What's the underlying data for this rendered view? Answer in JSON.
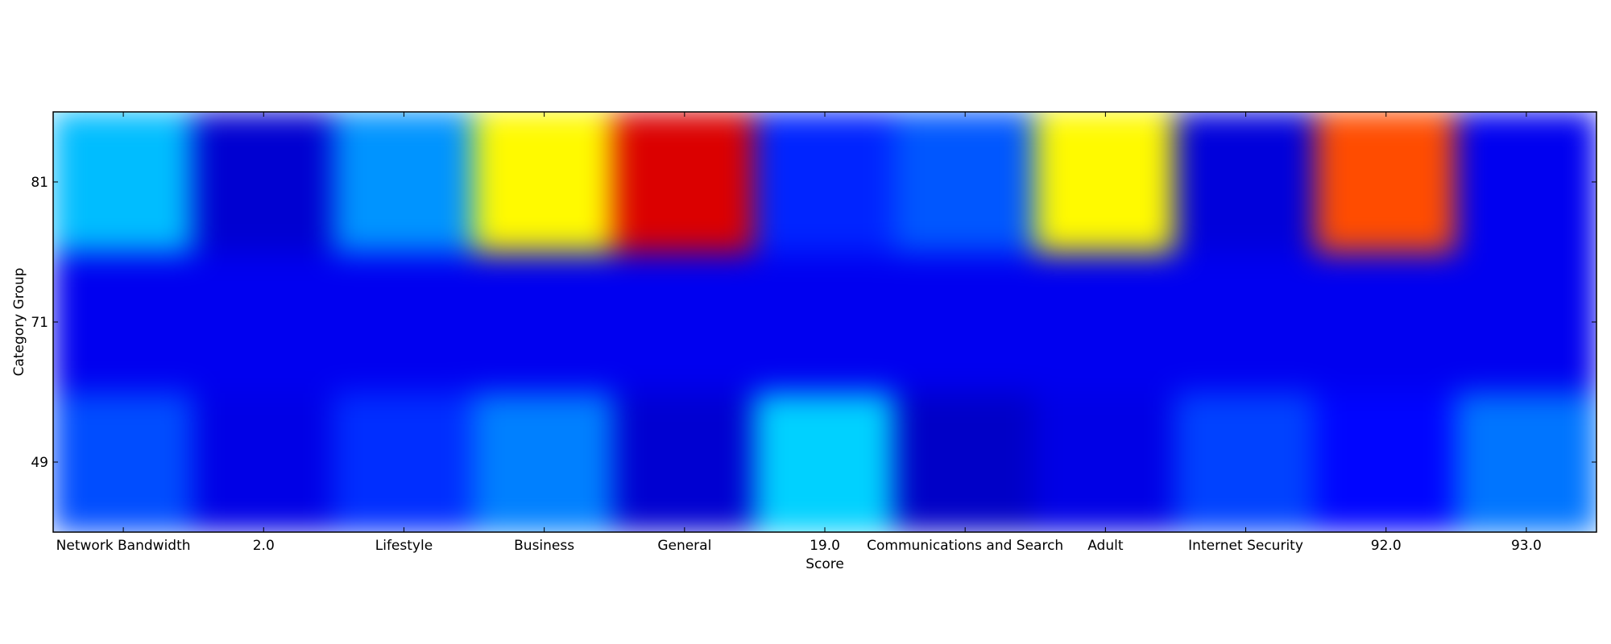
{
  "chart_data": {
    "type": "heatmap",
    "title": "",
    "xlabel": "Score",
    "ylabel": "Category Group",
    "x_categories": [
      "Network Bandwidth",
      "2.0",
      "Lifestyle",
      "Business",
      "General",
      "19.0",
      "Communications and Search",
      "Adult",
      "Internet Security",
      "92.0",
      "93.0"
    ],
    "y_categories": [
      "49",
      "71",
      "81"
    ],
    "values": [
      [
        0.2,
        0.1,
        0.17,
        0.25,
        0.08,
        0.33,
        0.07,
        0.1,
        0.19,
        0.13,
        0.24
      ],
      [
        0.11,
        0.11,
        0.11,
        0.11,
        0.11,
        0.11,
        0.11,
        0.11,
        0.11,
        0.11,
        0.11
      ],
      [
        0.31,
        0.08,
        0.27,
        0.63,
        0.91,
        0.16,
        0.21,
        0.63,
        0.09,
        0.8,
        0.11
      ]
    ],
    "colormap": "jet",
    "interpolation": "smooth",
    "grid": false,
    "legend": "none"
  }
}
